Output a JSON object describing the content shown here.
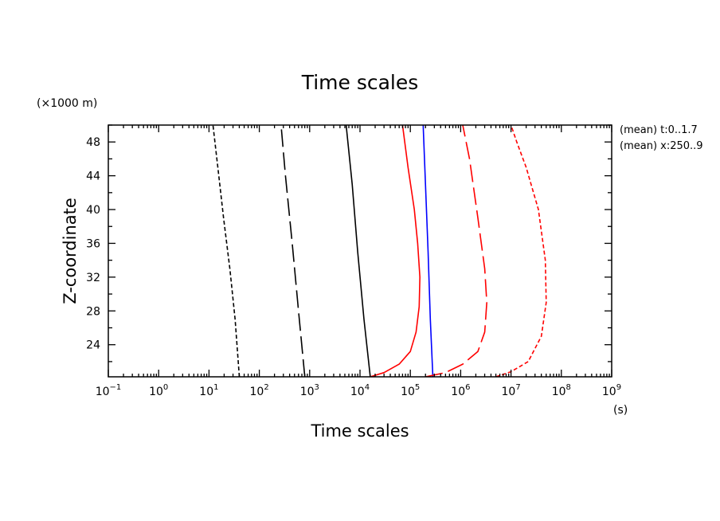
{
  "chart_data": {
    "type": "line",
    "title": "Time scales",
    "xlabel": "Time scales",
    "x_unit": "(s)",
    "ylabel": "Z-coordinate",
    "y_unit": "(×1000 m)",
    "x_scale": "log",
    "xlim": [
      0.1,
      1000000000
    ],
    "ylim": [
      20.2,
      50
    ],
    "x_tick_values": [
      0.1,
      1,
      10,
      100,
      1000,
      10000,
      100000,
      1000000,
      10000000,
      100000000,
      1000000000
    ],
    "x_tick_labels": [
      {
        "base": "10",
        "exp": "−1"
      },
      {
        "base": "10",
        "exp": "0"
      },
      {
        "base": "10",
        "exp": "1"
      },
      {
        "base": "10",
        "exp": "2"
      },
      {
        "base": "10",
        "exp": "3"
      },
      {
        "base": "10",
        "exp": "4"
      },
      {
        "base": "10",
        "exp": "5"
      },
      {
        "base": "10",
        "exp": "6"
      },
      {
        "base": "10",
        "exp": "7"
      },
      {
        "base": "10",
        "exp": "8"
      },
      {
        "base": "10",
        "exp": "9"
      }
    ],
    "y_ticks": [
      24,
      28,
      32,
      36,
      40,
      44,
      48
    ],
    "grid": false,
    "annotations": [
      "(mean) t:0..1.7",
      "(mean) x:250..9"
    ],
    "series": [
      {
        "color": "#000000",
        "dash": "short",
        "x": [
          40,
          33,
          26,
          19.5,
          15,
          12
        ],
        "y": [
          20.2,
          27,
          33,
          39,
          45,
          50
        ]
      },
      {
        "color": "#000000",
        "dash": "long",
        "x": [
          800,
          600,
          450,
          330,
          270
        ],
        "y": [
          20.2,
          28,
          36,
          44,
          50
        ]
      },
      {
        "color": "#000000",
        "dash": "solid",
        "x": [
          16000,
          12000,
          9000,
          7000,
          5300
        ],
        "y": [
          20.2,
          27,
          35,
          43,
          50
        ]
      },
      {
        "color": "#ff0000",
        "dash": "solid",
        "x": [
          16000,
          30000,
          60000,
          100000,
          130000,
          150000,
          155000,
          140000,
          120000,
          90000,
          70000
        ],
        "y": [
          20.2,
          20.7,
          21.7,
          23.2,
          25.5,
          28.5,
          32,
          36,
          40,
          45,
          50
        ]
      },
      {
        "color": "#0000ff",
        "dash": "solid",
        "x": [
          280000,
          250000,
          225000,
          200000,
          180000
        ],
        "y": [
          20.2,
          27,
          35,
          43,
          50
        ]
      },
      {
        "color": "#ff0000",
        "dash": "long",
        "x": [
          200000,
          500000,
          1100000,
          2200000,
          3000000,
          3300000,
          3000000,
          2200000,
          1500000,
          1100000
        ],
        "y": [
          20.2,
          20.7,
          21.7,
          23.2,
          25.5,
          29,
          33,
          39,
          46,
          50
        ]
      },
      {
        "color": "#ff0000",
        "dash": "short",
        "x": [
          5000000,
          10000000,
          22000000,
          40000000,
          50000000,
          48000000,
          35000000,
          20000000,
          13000000,
          10000000
        ],
        "y": [
          20.2,
          20.8,
          22,
          25,
          29,
          34,
          40,
          45,
          48,
          50
        ]
      }
    ]
  }
}
